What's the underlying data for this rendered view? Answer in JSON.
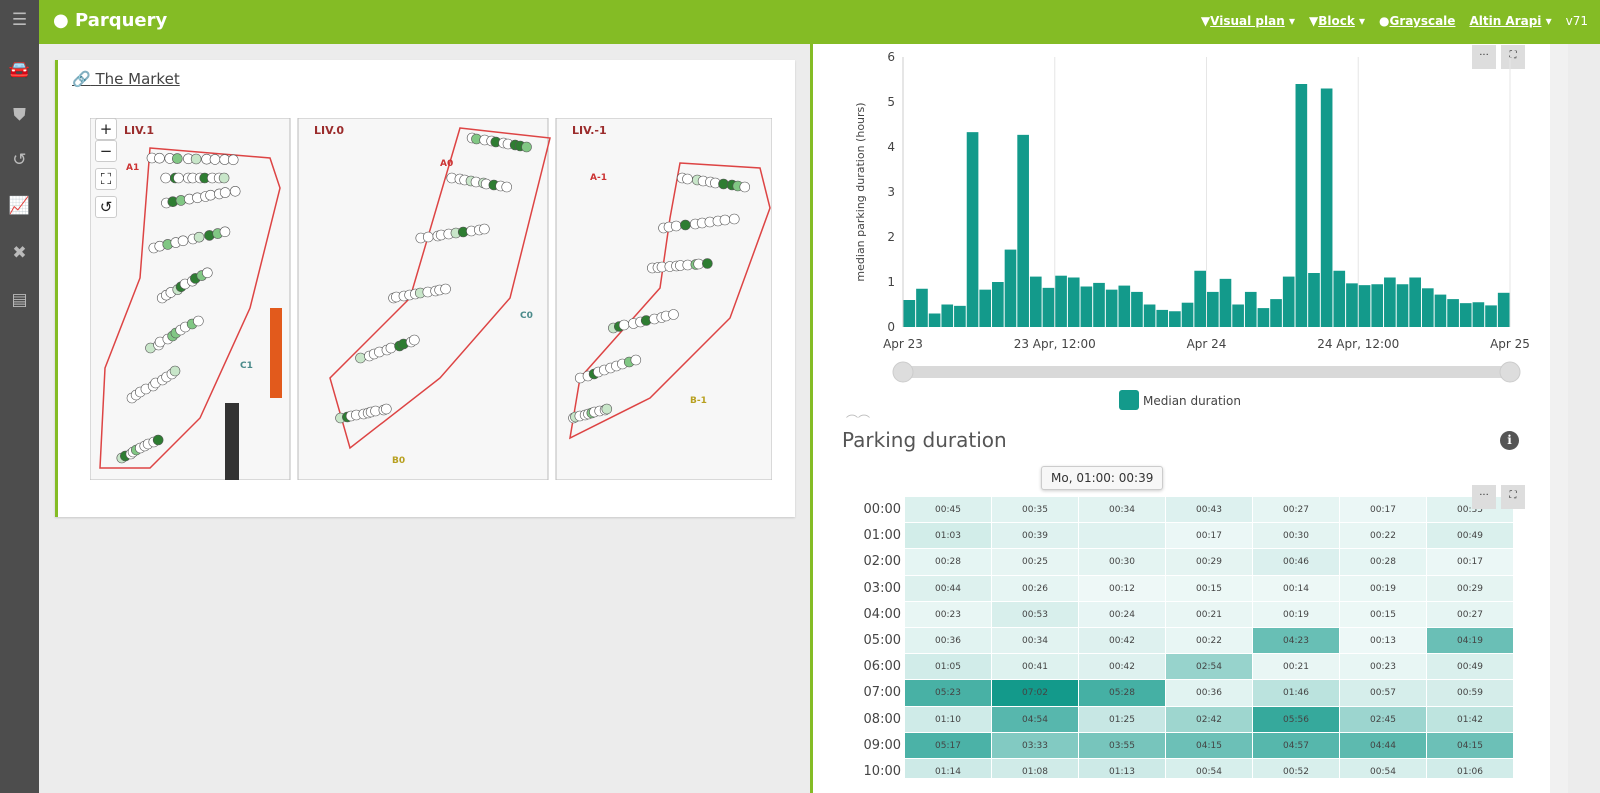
{
  "app": {
    "name": "Parquery",
    "version": "v71"
  },
  "sidebar": {
    "items": [
      {
        "icon": "menu-icon"
      },
      {
        "icon": "car-icon"
      },
      {
        "icon": "shield-icon"
      },
      {
        "icon": "history-icon"
      },
      {
        "icon": "chart-icon"
      },
      {
        "icon": "tools-icon"
      },
      {
        "icon": "document-icon"
      }
    ]
  },
  "header": {
    "nav": [
      {
        "label": "Visual plan",
        "icon": "filter-icon"
      },
      {
        "label": "Block",
        "icon": "filter-icon"
      },
      {
        "label": "Grayscale",
        "icon": "circle-icon"
      },
      {
        "label": "Altin Arapi"
      }
    ]
  },
  "site": {
    "title": "The Market",
    "levels": [
      "LIV.1",
      "LIV.0",
      "LIV.-1"
    ],
    "zones": [
      "A1",
      "C1",
      "A0",
      "C0",
      "B0",
      "A-1",
      "B-1"
    ]
  },
  "chart_data": {
    "type": "bar",
    "ylabel": "median parking duration (hours)",
    "ylim": [
      0,
      6
    ],
    "yticks": [
      0,
      1,
      2,
      3,
      4,
      5,
      6
    ],
    "xticks": [
      "Apr 23",
      "23 Apr, 12:00",
      "Apr 24",
      "24 Apr, 12:00",
      "Apr 25"
    ],
    "x_interval": "hourly",
    "grid": "vertical",
    "legend": "bottom",
    "color": "#139a8b",
    "series": [
      {
        "name": "Median duration",
        "values": [
          0.6,
          0.85,
          0.3,
          0.5,
          0.47,
          4.33,
          0.83,
          1.0,
          1.72,
          4.27,
          1.12,
          0.87,
          1.14,
          1.1,
          0.9,
          0.98,
          0.83,
          0.92,
          0.78,
          0.5,
          0.38,
          0.35,
          0.54,
          1.25,
          0.78,
          1.07,
          0.5,
          0.78,
          0.42,
          0.62,
          1.12,
          5.4,
          1.2,
          5.3,
          1.25,
          0.97,
          0.93,
          0.95,
          1.1,
          0.95,
          1.1,
          0.86,
          0.72,
          0.62,
          0.53,
          0.55,
          0.48,
          0.76
        ]
      }
    ]
  },
  "heatmap": {
    "title": "Parking duration",
    "rows": [
      "00:00",
      "01:00",
      "02:00",
      "03:00",
      "04:00",
      "05:00",
      "06:00",
      "07:00",
      "08:00",
      "09:00",
      "10:00"
    ],
    "cells": [
      [
        "00:45",
        "00:35",
        "00:34",
        "00:43",
        "00:27",
        "00:17",
        "00:35"
      ],
      [
        "01:03",
        "00:39",
        "",
        "00:17",
        "00:30",
        "00:22",
        "00:49"
      ],
      [
        "00:28",
        "00:25",
        "00:30",
        "00:29",
        "00:46",
        "00:28",
        "00:17"
      ],
      [
        "00:44",
        "00:26",
        "00:12",
        "00:15",
        "00:14",
        "00:19",
        "00:29"
      ],
      [
        "00:23",
        "00:53",
        "00:24",
        "00:21",
        "00:19",
        "00:15",
        "00:27"
      ],
      [
        "00:36",
        "00:34",
        "00:42",
        "00:22",
        "04:23",
        "00:13",
        "04:19"
      ],
      [
        "01:05",
        "00:41",
        "00:42",
        "02:54",
        "00:21",
        "00:23",
        "00:49"
      ],
      [
        "05:23",
        "07:02",
        "05:28",
        "00:36",
        "01:46",
        "00:57",
        "00:59"
      ],
      [
        "01:10",
        "04:54",
        "01:25",
        "02:42",
        "05:56",
        "02:45",
        "01:42"
      ],
      [
        "05:17",
        "03:33",
        "03:55",
        "04:15",
        "04:57",
        "04:44",
        "04:15"
      ],
      [
        "01:14",
        "01:08",
        "01:13",
        "00:54",
        "00:52",
        "00:54",
        "01:06"
      ]
    ],
    "tooltip": "Mo, 01:00: 00:39",
    "max_color": "#139a8b"
  }
}
